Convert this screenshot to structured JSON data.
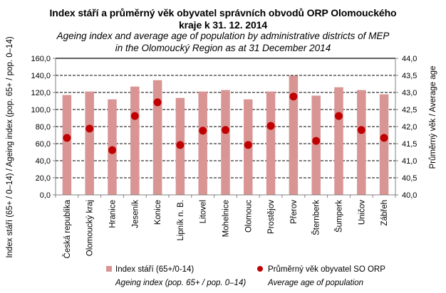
{
  "chart_data": {
    "type": "bar",
    "title": "Index stáří a průměrný věk obyvatel správních obvodů ORP Olomouckého kraje k 31. 12. 2014",
    "title_cz_line1": "Index stáří a průměrný věk obyvatel správních obvodů ORP Olomouckého",
    "title_cz_line2": "kraje k 31. 12. 2014",
    "subtitle_line1": "Ageing index and average age of population by administrative districts of MEP",
    "subtitle_line2": "in the Olomoucký Region  as at 31 December 2014",
    "categories": [
      "Česká republika",
      "Olomoucký kraj",
      "Hranice",
      "Jeseník",
      "Konice",
      "Lipník n. B.",
      "Litovel",
      "Mohelnice",
      "Olomouc",
      "Prostějov",
      "Přerov",
      "Šternberk",
      "Šumperk",
      "Uničov",
      "Zábřeh"
    ],
    "series": [
      {
        "name": "Index stáří (65+/0-14)",
        "name_en": "Ageing index  (pop. 65+ / pop. 0–14)",
        "type": "bar",
        "axis": "left",
        "color": "#D99594",
        "values": [
          117.0,
          121.1,
          111.9,
          126.9,
          134.4,
          113.6,
          121.1,
          122.8,
          111.9,
          121.1,
          139.7,
          116.3,
          126.1,
          122.8,
          117.8
        ]
      },
      {
        "name": "Průměrný věk obyvatel SO ORP",
        "name_en": "Average age of population",
        "type": "scatter",
        "axis": "right",
        "color": "#C00000",
        "values": [
          41.67,
          41.94,
          41.31,
          42.31,
          42.71,
          41.46,
          41.88,
          41.9,
          41.46,
          42.02,
          42.88,
          41.58,
          42.31,
          41.9,
          41.67
        ]
      }
    ],
    "ylabel": "Index stáří (65+ / 0–14)  / Ageing index (pop. 65+ / pop. 0–14)",
    "y2label": "Průměrný věk / Average age",
    "ylim": [
      0,
      160
    ],
    "y2lim": [
      40,
      44
    ],
    "yticks": [
      "0,0",
      "20,0",
      "40,0",
      "60,0",
      "80,0",
      "100,0",
      "120,0",
      "140,0",
      "160,0"
    ],
    "y2ticks": [
      "40,0",
      "40,5",
      "41,0",
      "41,5",
      "42,0",
      "42,5",
      "43,0",
      "43,5",
      "44,0"
    ],
    "grid": "dashed horizontal",
    "legend": "bottom"
  }
}
